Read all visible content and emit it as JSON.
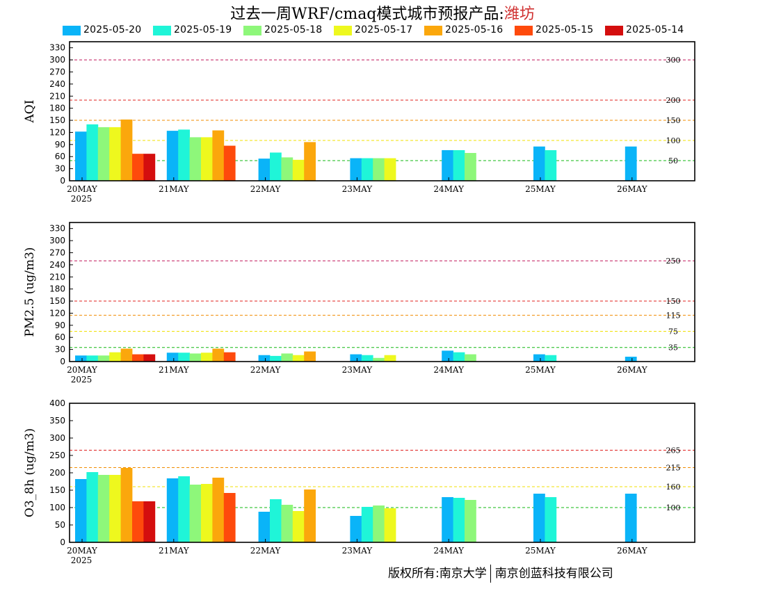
{
  "title": {
    "main": "过去一周WRF/cmaq模式城市预报产品:",
    "city": "潍坊"
  },
  "legend": [
    {
      "label": "2025-05-20",
      "color": "#0ab4f8"
    },
    {
      "label": "2025-05-19",
      "color": "#1ff5d8"
    },
    {
      "label": "2025-05-18",
      "color": "#8ef77a"
    },
    {
      "label": "2025-05-17",
      "color": "#eef81e"
    },
    {
      "label": "2025-05-16",
      "color": "#fba70c"
    },
    {
      "label": "2025-05-15",
      "color": "#fe4a0c"
    },
    {
      "label": "2025-05-14",
      "color": "#d40e0e"
    }
  ],
  "footer": {
    "left": "版权所有:南京大学",
    "right": "南京创蓝科技有限公司"
  },
  "chart_data": [
    {
      "type": "bar",
      "ylabel": "AQI",
      "categories": [
        "20MAY",
        "21MAY",
        "22MAY",
        "23MAY",
        "24MAY",
        "25MAY",
        "26MAY"
      ],
      "year_label": "2025",
      "ylim": [
        0,
        345
      ],
      "yticks": [
        0,
        30,
        60,
        90,
        120,
        150,
        180,
        210,
        240,
        270,
        300,
        330
      ],
      "thresholds": [
        {
          "value": 300,
          "label": "300",
          "color": "#c0145a"
        },
        {
          "value": 200,
          "label": "200",
          "color": "#e0201e"
        },
        {
          "value": 150,
          "label": "150",
          "color": "#f08c00"
        },
        {
          "value": 100,
          "label": "100",
          "color": "#f0e000"
        },
        {
          "value": 50,
          "label": "50",
          "color": "#10b810"
        }
      ],
      "series": [
        {
          "name": "2025-05-20",
          "values": [
            122,
            124,
            55,
            56,
            76,
            85,
            85
          ]
        },
        {
          "name": "2025-05-19",
          "values": [
            140,
            127,
            70,
            56,
            76,
            76,
            null
          ]
        },
        {
          "name": "2025-05-18",
          "values": [
            133,
            108,
            58,
            56,
            69,
            null,
            null
          ]
        },
        {
          "name": "2025-05-17",
          "values": [
            133,
            108,
            52,
            56,
            null,
            null,
            null
          ]
        },
        {
          "name": "2025-05-16",
          "values": [
            152,
            125,
            96,
            null,
            null,
            null,
            null
          ]
        },
        {
          "name": "2025-05-15",
          "values": [
            67,
            87,
            null,
            null,
            null,
            null,
            null
          ]
        },
        {
          "name": "2025-05-14",
          "values": [
            67,
            null,
            null,
            null,
            null,
            null,
            null
          ]
        }
      ]
    },
    {
      "type": "bar",
      "ylabel": "PM2.5 (ug/m3)",
      "categories": [
        "20MAY",
        "21MAY",
        "22MAY",
        "23MAY",
        "24MAY",
        "25MAY",
        "26MAY"
      ],
      "year_label": "2025",
      "ylim": [
        0,
        345
      ],
      "yticks": [
        0,
        30,
        60,
        90,
        120,
        150,
        180,
        210,
        240,
        270,
        300,
        330
      ],
      "thresholds": [
        {
          "value": 250,
          "label": "250",
          "color": "#c0145a"
        },
        {
          "value": 150,
          "label": "150",
          "color": "#e0201e"
        },
        {
          "value": 115,
          "label": "115",
          "color": "#f08c00"
        },
        {
          "value": 75,
          "label": "75",
          "color": "#f0e000"
        },
        {
          "value": 35,
          "label": "35",
          "color": "#10b810"
        }
      ],
      "series": [
        {
          "name": "2025-05-20",
          "values": [
            15,
            22,
            16,
            18,
            27,
            18,
            12
          ]
        },
        {
          "name": "2025-05-19",
          "values": [
            15,
            22,
            14,
            16,
            23,
            16,
            null
          ]
        },
        {
          "name": "2025-05-18",
          "values": [
            15,
            20,
            20,
            9,
            18,
            null,
            null
          ]
        },
        {
          "name": "2025-05-17",
          "values": [
            23,
            22,
            16,
            16,
            null,
            null,
            null
          ]
        },
        {
          "name": "2025-05-16",
          "values": [
            32,
            32,
            25,
            null,
            null,
            null,
            null
          ]
        },
        {
          "name": "2025-05-15",
          "values": [
            18,
            23,
            null,
            null,
            null,
            null,
            null
          ]
        },
        {
          "name": "2025-05-14",
          "values": [
            18,
            null,
            null,
            null,
            null,
            null,
            null
          ]
        }
      ]
    },
    {
      "type": "bar",
      "ylabel": "O3_8h (ug/m3)",
      "categories": [
        "20MAY",
        "21MAY",
        "22MAY",
        "23MAY",
        "24MAY",
        "25MAY",
        "26MAY"
      ],
      "year_label": "2025",
      "ylim": [
        0,
        400
      ],
      "yticks": [
        0,
        50,
        100,
        150,
        200,
        250,
        300,
        350,
        400
      ],
      "thresholds": [
        {
          "value": 265,
          "label": "265",
          "color": "#e0201e"
        },
        {
          "value": 215,
          "label": "215",
          "color": "#f08c00"
        },
        {
          "value": 160,
          "label": "160",
          "color": "#f0e000"
        },
        {
          "value": 100,
          "label": "100",
          "color": "#10b810"
        }
      ],
      "series": [
        {
          "name": "2025-05-20",
          "values": [
            182,
            184,
            88,
            76,
            130,
            140,
            140
          ]
        },
        {
          "name": "2025-05-19",
          "values": [
            202,
            190,
            124,
            102,
            128,
            130,
            null
          ]
        },
        {
          "name": "2025-05-18",
          "values": [
            194,
            166,
            108,
            106,
            122,
            null,
            null
          ]
        },
        {
          "name": "2025-05-17",
          "values": [
            194,
            168,
            90,
            98,
            null,
            null,
            null
          ]
        },
        {
          "name": "2025-05-16",
          "values": [
            214,
            186,
            152,
            null,
            null,
            null,
            null
          ]
        },
        {
          "name": "2025-05-15",
          "values": [
            118,
            142,
            null,
            null,
            null,
            null,
            null
          ]
        },
        {
          "name": "2025-05-14",
          "values": [
            118,
            null,
            null,
            null,
            null,
            null,
            null
          ]
        }
      ]
    }
  ]
}
